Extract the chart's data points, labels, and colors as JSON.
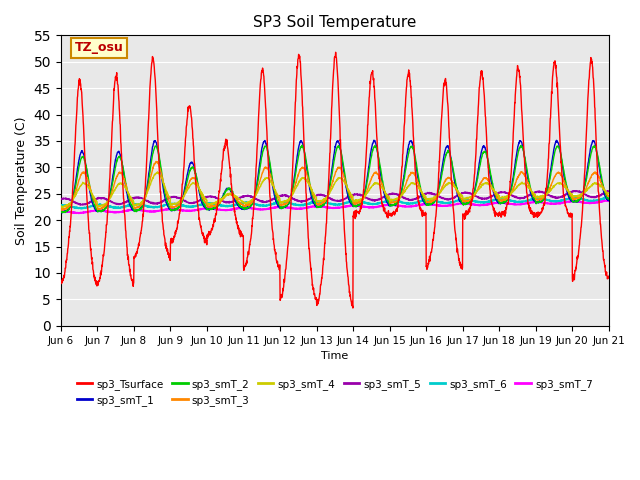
{
  "title": "SP3 Soil Temperature",
  "ylabel": "Soil Temperature (C)",
  "xlabel": "Time",
  "annotation": "TZ_osu",
  "ylim": [
    0,
    55
  ],
  "yticks": [
    0,
    5,
    10,
    15,
    20,
    25,
    30,
    35,
    40,
    45,
    50,
    55
  ],
  "series_colors": {
    "sp3_Tsurface": "#ff0000",
    "sp3_smT_1": "#0000cc",
    "sp3_smT_2": "#00cc00",
    "sp3_smT_3": "#ff8800",
    "sp3_smT_4": "#cccc00",
    "sp3_smT_5": "#9900aa",
    "sp3_smT_6": "#00cccc",
    "sp3_smT_7": "#ff00ff"
  },
  "background_color": "#e8e8e8",
  "n_days": 15,
  "spd": 144,
  "start_day": 6,
  "surface_peaks": [
    47,
    48,
    51,
    42,
    35,
    49,
    52,
    52,
    48,
    48,
    47,
    48,
    49,
    50,
    51
  ],
  "surface_lows": [
    8,
    8,
    13,
    16,
    17,
    11,
    5,
    4,
    21,
    21,
    11,
    21,
    21,
    21,
    9
  ],
  "smT1_peaks": [
    33,
    33,
    35,
    31,
    26,
    35,
    35,
    35,
    35,
    35,
    34,
    34,
    35,
    35,
    35
  ],
  "smT2_peaks": [
    32,
    32,
    34,
    30,
    26,
    34,
    34,
    34,
    34,
    34,
    33,
    33,
    34,
    34,
    34
  ],
  "smT3_peaks": [
    29,
    29,
    31,
    28,
    25,
    30,
    30,
    30,
    29,
    29,
    28,
    28,
    29,
    29,
    29
  ],
  "smT4_peaks": [
    27,
    27,
    29,
    27,
    25,
    28,
    28,
    28,
    27,
    27,
    27,
    27,
    27,
    27,
    27
  ],
  "smT5_base": 23.5,
  "smT6_base": 22.5,
  "smT7_base": 21.5,
  "legend_ncol_row1": 6,
  "figsize": [
    6.4,
    4.8
  ],
  "dpi": 100
}
